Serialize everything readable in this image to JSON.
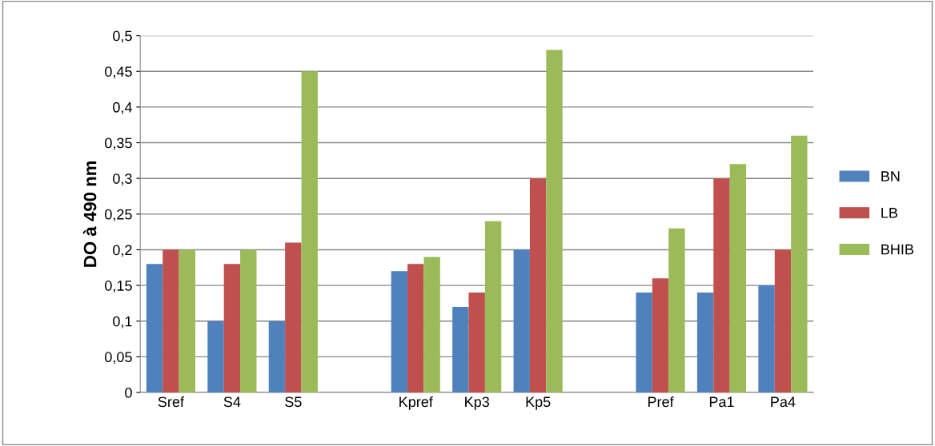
{
  "chart_data": {
    "type": "bar",
    "ylabel": "DO à 490 nm",
    "categories": [
      "Sref",
      "S4",
      "S5",
      null,
      "Kpref",
      "Kp3",
      "Kp5",
      null,
      "Pref",
      "Pa1",
      "Pa4"
    ],
    "series": [
      {
        "name": "BN",
        "color": "#4f81bd",
        "values": [
          0.18,
          0.1,
          0.1,
          null,
          0.17,
          0.12,
          0.2,
          null,
          0.14,
          0.14,
          0.15
        ]
      },
      {
        "name": "LB",
        "color": "#c0504d",
        "values": [
          0.2,
          0.18,
          0.21,
          null,
          0.18,
          0.14,
          0.3,
          null,
          0.16,
          0.3,
          0.2
        ]
      },
      {
        "name": "BHIB",
        "color": "#9bbb59",
        "values": [
          0.2,
          0.2,
          0.45,
          null,
          0.19,
          0.24,
          0.48,
          null,
          0.23,
          0.32,
          0.36
        ]
      }
    ],
    "ylim": [
      0,
      0.5
    ],
    "yticks": [
      0,
      {
        "value": 0.05,
        "label": "0,05"
      },
      {
        "value": 0.1,
        "label": "0,1"
      },
      {
        "value": 0.15,
        "label": "0,15"
      },
      {
        "value": 0.2,
        "label": "0,2"
      },
      {
        "value": 0.25,
        "label": "0,25"
      },
      {
        "value": 0.3,
        "label": "0,3"
      },
      {
        "value": 0.35,
        "label": "0,35"
      },
      {
        "value": 0.4,
        "label": "0,4"
      },
      {
        "value": 0.45,
        "label": "0,45"
      },
      {
        "value": 0.5,
        "label": "0,5"
      }
    ],
    "grid": "y",
    "legend": "right"
  }
}
